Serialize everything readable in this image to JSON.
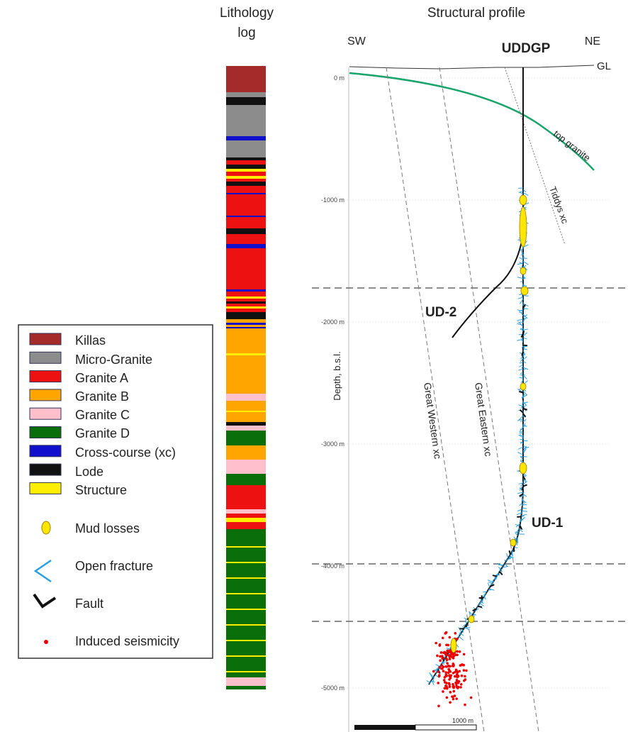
{
  "header": {
    "lithology_title_1": "Lithology",
    "lithology_title_2": "log",
    "profile_title": "Structural profile"
  },
  "legend": {
    "items": [
      "Killas",
      "Micro-Granite",
      "Granite A",
      "Granite B",
      "Granite C",
      "Granite D",
      "Cross-course (xc)",
      "Lode",
      "Structure",
      "Mud losses",
      "Open fracture",
      "Fault",
      "Induced seismicity"
    ]
  },
  "profile": {
    "sw": "SW",
    "ne": "NE",
    "well_head": "UDDGP",
    "ground_level": "GL",
    "top_granite": "top granite",
    "depth_axis": "Depth, b.s.l.",
    "depth_ticks": [
      "0 m",
      "-1000 m",
      "-2000 m",
      "-3000 m",
      "-4000 m",
      "-5000 m"
    ],
    "faults": [
      "Great Western xc",
      "Great Eastern xc",
      "Tiddys xc"
    ],
    "wells": [
      "UD-1",
      "UD-2"
    ],
    "scale_bar": "1000 m"
  }
}
